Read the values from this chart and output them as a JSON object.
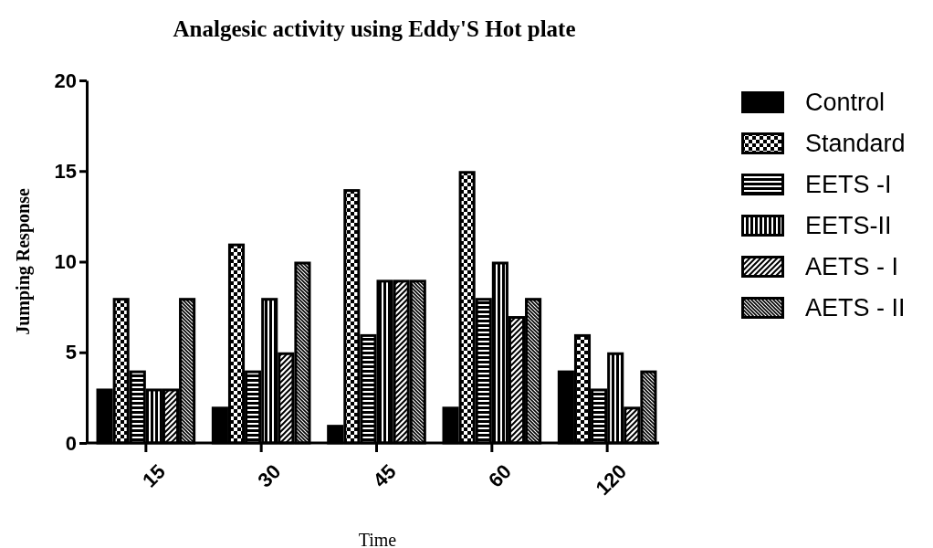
{
  "chart_data": {
    "type": "bar",
    "title": "Analgesic activity using Eddy'S Hot plate",
    "xlabel": "Time",
    "ylabel": "Jumping Response",
    "categories": [
      "15",
      "30",
      "45",
      "60",
      "120"
    ],
    "series": [
      {
        "name": "Control",
        "color": "#000000",
        "values": [
          3,
          2,
          1,
          2,
          4
        ]
      },
      {
        "name": "Standard",
        "color": "#000000",
        "values": [
          8,
          11,
          14,
          15,
          6
        ]
      },
      {
        "name": "EETS -I",
        "color": "#000000",
        "values": [
          4,
          4,
          6,
          8,
          3
        ]
      },
      {
        "name": "EETS-II",
        "color": "#000000",
        "values": [
          3,
          8,
          9,
          10,
          5
        ]
      },
      {
        "name": "AETS - I",
        "color": "#000000",
        "values": [
          3,
          5,
          9,
          7,
          2
        ]
      },
      {
        "name": "AETS - II",
        "color": "#000000",
        "values": [
          8,
          10,
          9,
          8,
          4
        ]
      }
    ],
    "ylim": [
      0,
      20
    ],
    "yticks": [
      0,
      5,
      10,
      15,
      20
    ],
    "grid": false,
    "legend": "right"
  }
}
